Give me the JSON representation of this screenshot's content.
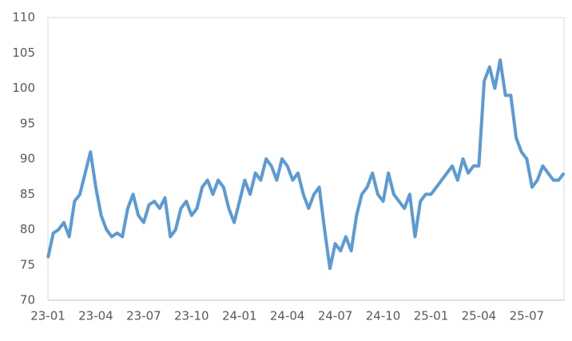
{
  "chart_data": {
    "type": "line",
    "categories": [
      "23-01",
      null,
      null,
      null,
      null,
      null,
      null,
      null,
      null,
      "23-04",
      null,
      null,
      null,
      null,
      null,
      null,
      null,
      null,
      "23-07",
      null,
      null,
      null,
      null,
      null,
      null,
      null,
      null,
      "23-10",
      null,
      null,
      null,
      null,
      null,
      null,
      null,
      null,
      "24-01",
      null,
      null,
      null,
      null,
      null,
      null,
      null,
      null,
      "24-04",
      null,
      null,
      null,
      null,
      null,
      null,
      null,
      null,
      "24-07",
      null,
      null,
      null,
      null,
      null,
      null,
      null,
      null,
      "24-10",
      null,
      null,
      null,
      null,
      null,
      null,
      null,
      null,
      "25-01",
      null,
      null,
      null,
      null,
      null,
      null,
      null,
      null,
      "25-04",
      null,
      null,
      null,
      null,
      null,
      null,
      null,
      null,
      "25-07",
      null,
      null,
      null,
      null,
      null,
      null,
      null
    ],
    "series": [
      {
        "color": "#5b9bd5",
        "values": [
          76,
          79.5,
          80,
          81,
          79,
          84,
          85,
          88,
          91,
          86,
          82,
          80,
          79,
          79.5,
          79,
          83,
          85,
          82,
          81,
          83.5,
          84,
          83,
          84.5,
          79,
          80,
          83,
          84,
          82,
          83,
          86,
          87,
          85,
          87,
          86,
          83,
          81,
          84,
          87,
          85,
          88,
          87,
          90,
          89,
          87,
          90,
          89,
          87,
          88,
          85,
          83,
          85,
          86,
          80,
          74.5,
          78,
          77,
          79,
          77,
          82,
          85,
          86,
          88,
          85,
          84,
          88,
          85,
          84,
          83,
          85,
          79,
          84,
          85,
          85,
          86,
          87,
          88,
          89,
          87,
          90,
          88,
          89,
          89,
          101,
          103,
          100,
          104,
          99,
          99,
          93,
          91,
          90,
          86,
          87,
          89,
          88,
          87,
          87,
          88
        ]
      }
    ],
    "ylim": [
      70,
      110
    ],
    "yticks": [
      70,
      75,
      80,
      85,
      90,
      95,
      100,
      105,
      110
    ],
    "grid": false
  }
}
